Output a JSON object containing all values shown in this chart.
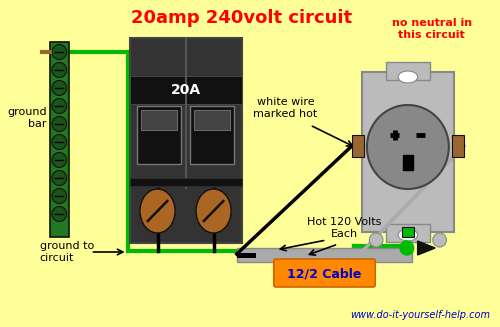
{
  "title": "20amp 240volt circuit",
  "title_color": "#ff0000",
  "title_fontsize": 13,
  "bg_color": "#ffff99",
  "subtitle": "no neutral in\nthis circuit",
  "subtitle_color": "#ff0000",
  "label_ground_bar": "ground\nbar",
  "label_ground_circuit": "ground to\ncircuit",
  "label_white_wire": "white wire\nmarked hot",
  "label_hot": "Hot 120 Volts\nEach",
  "label_cable": "12/2 Cable",
  "label_20A": "20A",
  "website": "www.do-it-yourself-help.com",
  "green_color": "#00bb00",
  "gray_color": "#aaaaaa",
  "brown_color": "#996633",
  "orange_color": "#ff8800",
  "white_color": "#ffffff",
  "black_color": "#000000",
  "blue_color": "#0000cc",
  "light_gray": "#cccccc",
  "breaker_color": "#333333",
  "screw_color": "#aa6622",
  "outlet_plate": "#bbbbbb",
  "outlet_face": "#888888",
  "gb_green": "#227722",
  "gb_screw": "#1a551a",
  "wire_gray": "#aaaaaa"
}
